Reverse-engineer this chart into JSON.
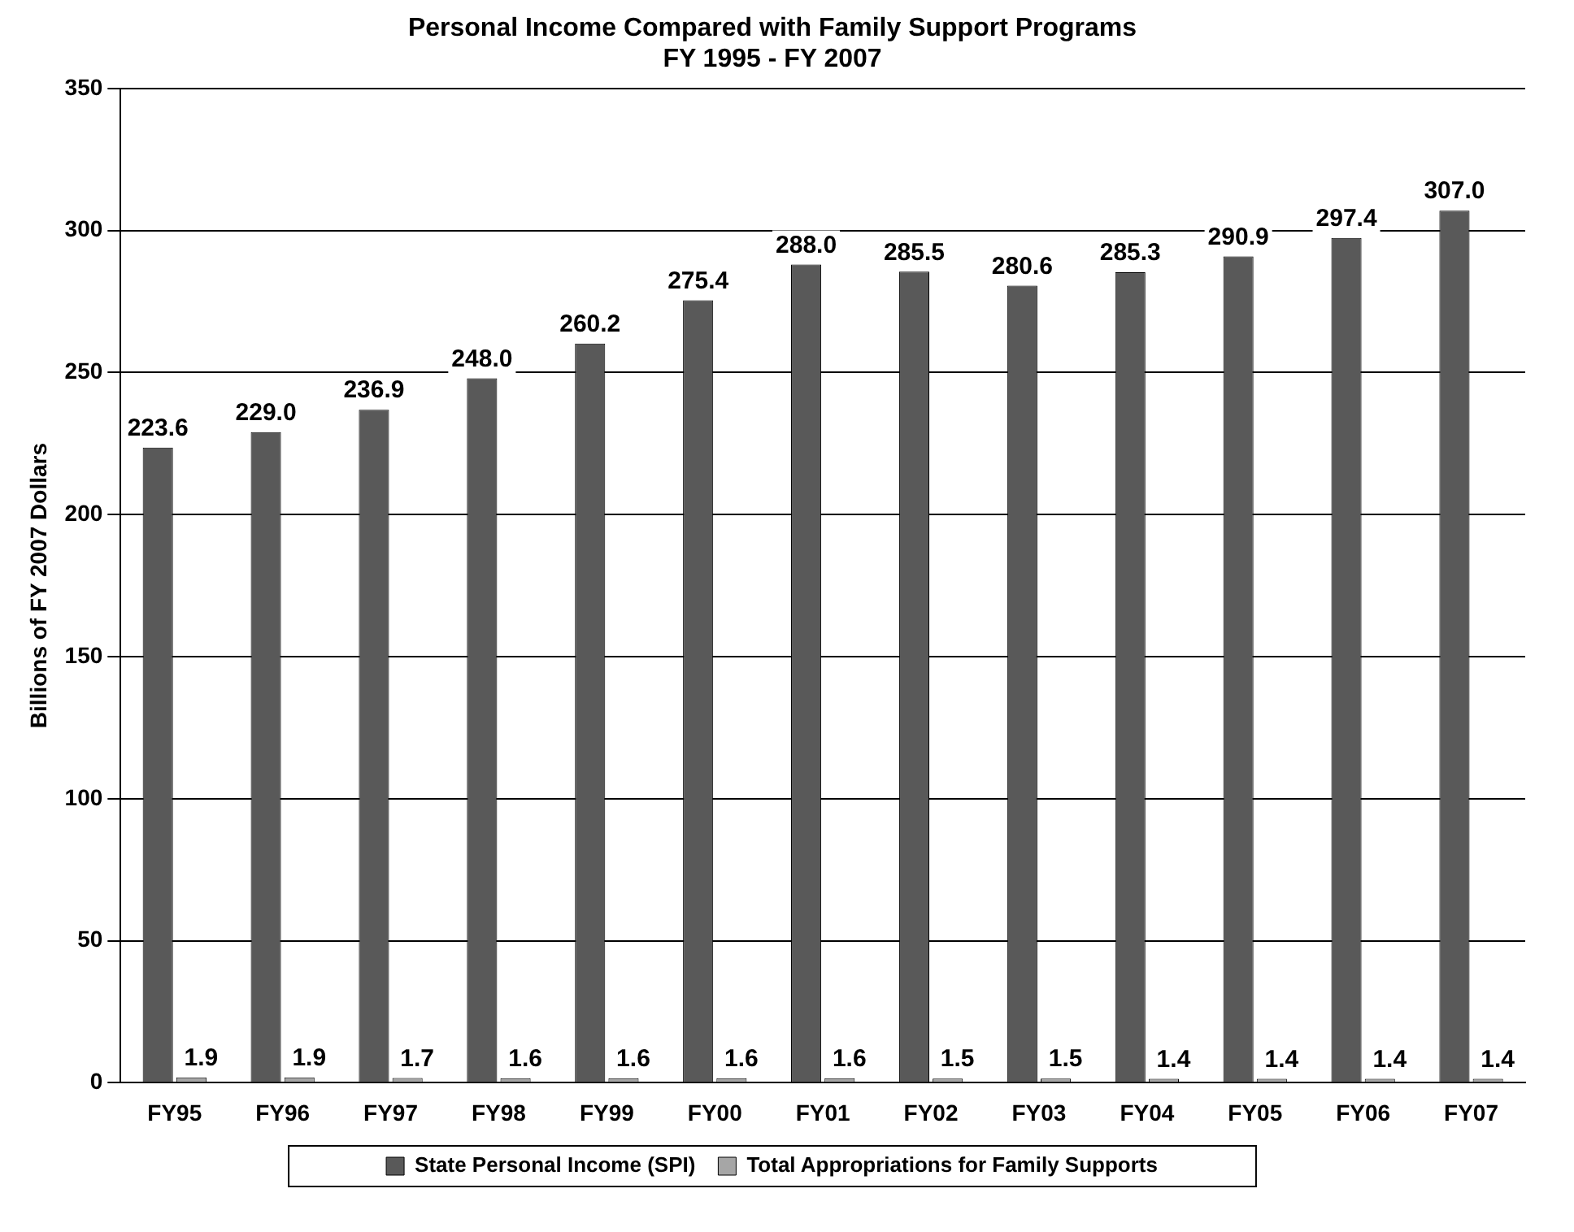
{
  "chart_data": {
    "type": "bar",
    "title": "Personal Income Compared with Family Support Programs",
    "subtitle": "FY 1995 - FY 2007",
    "ylabel": "Billions of FY 2007 Dollars",
    "categories": [
      "FY95",
      "FY96",
      "FY97",
      "FY98",
      "FY99",
      "FY00",
      "FY01",
      "FY02",
      "FY03",
      "FY04",
      "FY05",
      "FY06",
      "FY07"
    ],
    "series": [
      {
        "name": "State Personal Income (SPI)",
        "color": "#595959",
        "values": [
          223.6,
          229.0,
          236.9,
          248.0,
          260.2,
          275.4,
          288.0,
          285.5,
          280.6,
          285.3,
          290.9,
          297.4,
          307.0
        ],
        "value_labels": [
          "223.6",
          "229.0",
          "236.9",
          "248.0",
          "260.2",
          "275.4",
          "288.0",
          "285.5",
          "280.6",
          "285.3",
          "290.9",
          "297.4",
          "307.0"
        ]
      },
      {
        "name": "Total Appropriations for Family Supports",
        "color": "#a6a6a6",
        "values": [
          1.9,
          1.9,
          1.7,
          1.6,
          1.6,
          1.6,
          1.6,
          1.5,
          1.5,
          1.4,
          1.4,
          1.4,
          1.4
        ],
        "value_labels": [
          "1.9",
          "1.9",
          "1.7",
          "1.6",
          "1.6",
          "1.6",
          "1.6",
          "1.5",
          "1.5",
          "1.4",
          "1.4",
          "1.4",
          "1.4"
        ]
      }
    ],
    "ylim": [
      0,
      350
    ],
    "yticks": [
      0,
      50,
      100,
      150,
      200,
      250,
      300,
      350
    ],
    "grid": "y",
    "legend": "bottom"
  }
}
